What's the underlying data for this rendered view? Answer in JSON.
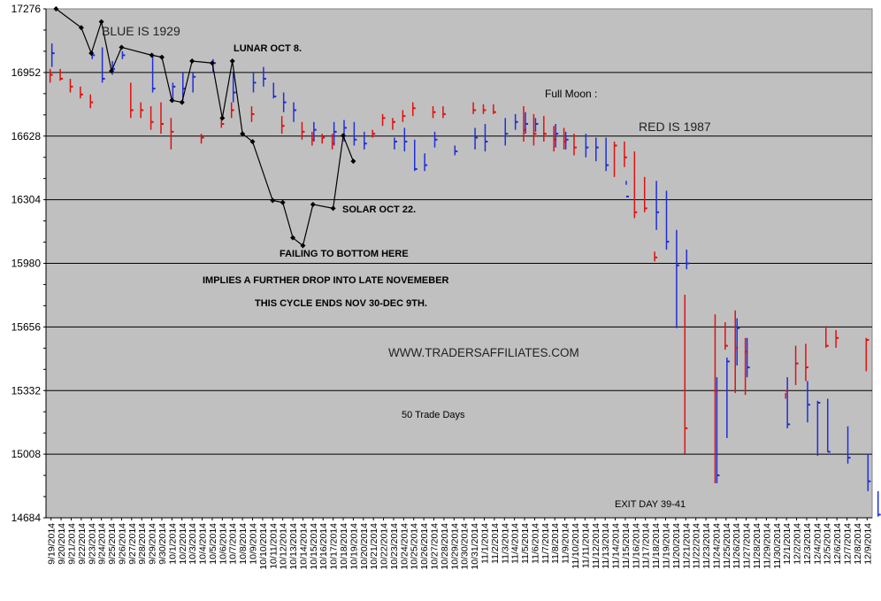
{
  "chart_data": {
    "type": "line",
    "title": "",
    "xlabel": "",
    "ylabel": "",
    "ylim": [
      14684,
      17276
    ],
    "yticks": [
      17276,
      16952,
      16628,
      16304,
      15980,
      15656,
      15332,
      15008,
      14684
    ],
    "grid": true,
    "plot_background": "#c0c0c0",
    "categories": [
      "9/19/2014",
      "9/20/2014",
      "9/21/2014",
      "9/22/2014",
      "9/23/2014",
      "9/24/2014",
      "9/25/2014",
      "9/26/2014",
      "9/27/2014",
      "9/28/2014",
      "9/29/2014",
      "9/30/2014",
      "10/1/2014",
      "10/2/2014",
      "10/3/2014",
      "10/4/2014",
      "10/5/2014",
      "10/6/2014",
      "10/7/2014",
      "10/8/2014",
      "10/9/2014",
      "10/10/2014",
      "10/11/2014",
      "10/12/2014",
      "10/13/2014",
      "10/14/2014",
      "10/15/2014",
      "10/16/2014",
      "10/17/2014",
      "10/18/2014",
      "10/19/2014",
      "10/20/2014",
      "10/21/2014",
      "10/22/2014",
      "10/23/2014",
      "10/24/2014",
      "10/25/2014",
      "10/26/2014",
      "10/27/2014",
      "10/28/2014",
      "10/29/2014",
      "10/30/2014",
      "10/31/2014",
      "11/1/2014",
      "11/2/2014",
      "11/3/2014",
      "11/4/2014",
      "11/5/2014",
      "11/6/2014",
      "11/7/2014",
      "11/8/2014",
      "11/9/2014",
      "11/10/2014",
      "11/11/2014",
      "11/12/2014",
      "11/13/2014",
      "11/14/2014",
      "11/15/2014",
      "11/16/2014",
      "11/17/2014",
      "11/18/2014",
      "11/19/2014",
      "11/20/2014",
      "11/21/2014",
      "11/22/2014",
      "11/23/2014",
      "11/24/2014",
      "11/25/2014",
      "11/26/2014",
      "11/27/2014",
      "11/28/2014",
      "11/29/2014",
      "11/30/2014",
      "12/1/2014",
      "12/2/2014",
      "12/3/2014",
      "12/4/2014",
      "12/5/2014",
      "12/6/2014",
      "12/7/2014",
      "12/8/2014",
      "12/9/2014"
    ],
    "series": [
      {
        "name": "BLUE IS 1929",
        "type": "hlc_bars",
        "color": "#1f2fd6",
        "bars": [
          [
            0,
            17100,
            16980,
            17050
          ],
          [
            4,
            17060,
            17020,
            17040
          ],
          [
            5,
            17080,
            16900,
            16920
          ],
          [
            6,
            17010,
            16940,
            16970
          ],
          [
            7,
            17060,
            17020,
            17040
          ],
          [
            10,
            17040,
            16850,
            16870
          ],
          [
            12,
            16900,
            16800,
            16880
          ],
          [
            13,
            16950,
            16810,
            16870
          ],
          [
            14,
            16950,
            16850,
            16930
          ],
          [
            16,
            17020,
            16950,
            17000
          ],
          [
            18,
            16950,
            16800,
            16850
          ],
          [
            20,
            16950,
            16850,
            16900
          ],
          [
            21,
            16980,
            16880,
            16920
          ],
          [
            22,
            16900,
            16820,
            16830
          ],
          [
            23,
            16850,
            16750,
            16800
          ],
          [
            24,
            16800,
            16700,
            16760
          ],
          [
            26,
            16700,
            16600,
            16660
          ],
          [
            28,
            16700,
            16580,
            16650
          ],
          [
            29,
            16710,
            16600,
            16670
          ],
          [
            30,
            16700,
            16580,
            16610
          ],
          [
            31,
            16650,
            16560,
            16590
          ],
          [
            34,
            16620,
            16560,
            16600
          ],
          [
            35,
            16670,
            16550,
            16600
          ],
          [
            36,
            16610,
            16450,
            16460
          ],
          [
            37,
            16540,
            16450,
            16480
          ],
          [
            38,
            16650,
            16570,
            16610
          ],
          [
            40,
            16580,
            16530,
            16550
          ],
          [
            42,
            16670,
            16560,
            16620
          ],
          [
            43,
            16690,
            16550,
            16600
          ],
          [
            45,
            16720,
            16580,
            16640
          ],
          [
            46,
            16740,
            16660,
            16700
          ],
          [
            47,
            16750,
            16640,
            16690
          ],
          [
            48,
            16720,
            16650,
            16690
          ],
          [
            50,
            16690,
            16570,
            16640
          ],
          [
            51,
            16650,
            16560,
            16610
          ],
          [
            53,
            16640,
            16520,
            16570
          ],
          [
            54,
            16620,
            16500,
            16570
          ],
          [
            55,
            16620,
            16450,
            16480
          ],
          [
            57,
            16400,
            16380,
            16320
          ],
          [
            60,
            16400,
            16150,
            16240
          ],
          [
            61,
            16350,
            16050,
            16090
          ],
          [
            62,
            16150,
            15650,
            15970
          ],
          [
            63,
            16050,
            15950,
            15980
          ],
          [
            66,
            15400,
            14860,
            14900
          ],
          [
            67,
            15500,
            15090,
            15480
          ],
          [
            68,
            15700,
            15460,
            15650
          ],
          [
            69,
            15600,
            15400,
            15450
          ],
          [
            73,
            15400,
            15140,
            15160
          ],
          [
            75,
            15380,
            15170,
            15260
          ],
          [
            76,
            15280,
            15000,
            15270
          ],
          [
            77,
            15290,
            15020,
            15020
          ],
          [
            79,
            15150,
            14960,
            14990
          ],
          [
            81,
            15010,
            14820,
            14870
          ],
          [
            82,
            14820,
            14690,
            14700
          ]
        ]
      },
      {
        "name": "RED IS 1987",
        "type": "hlc_bars",
        "color": "#e01010",
        "bars": [
          [
            0,
            16970,
            16900,
            16940
          ],
          [
            1,
            16970,
            16910,
            16920
          ],
          [
            2,
            16920,
            16850,
            16880
          ],
          [
            3,
            16880,
            16820,
            16840
          ],
          [
            4,
            16840,
            16770,
            16800
          ],
          [
            8,
            16900,
            16720,
            16760
          ],
          [
            9,
            16800,
            16720,
            16760
          ],
          [
            10,
            16780,
            16660,
            16700
          ],
          [
            11,
            16800,
            16640,
            16690
          ],
          [
            12,
            16720,
            16560,
            16650
          ],
          [
            15,
            16640,
            16590,
            16620
          ],
          [
            17,
            16720,
            16670,
            16690
          ],
          [
            18,
            16800,
            16720,
            16760
          ],
          [
            20,
            16780,
            16700,
            16740
          ],
          [
            23,
            16730,
            16640,
            16680
          ],
          [
            25,
            16700,
            16610,
            16650
          ],
          [
            26,
            16650,
            16580,
            16610
          ],
          [
            27,
            16640,
            16590,
            16620
          ],
          [
            28,
            16640,
            16560,
            16590
          ],
          [
            32,
            16660,
            16620,
            16640
          ],
          [
            33,
            16740,
            16680,
            16720
          ],
          [
            34,
            16720,
            16660,
            16700
          ],
          [
            35,
            16760,
            16700,
            16730
          ],
          [
            36,
            16800,
            16730,
            16770
          ],
          [
            38,
            16780,
            16720,
            16750
          ],
          [
            39,
            16780,
            16720,
            16740
          ],
          [
            42,
            16800,
            16740,
            16760
          ],
          [
            43,
            16790,
            16740,
            16760
          ],
          [
            44,
            16790,
            16740,
            16750
          ],
          [
            47,
            16780,
            16600,
            16660
          ],
          [
            48,
            16740,
            16580,
            16640
          ],
          [
            49,
            16730,
            16600,
            16640
          ],
          [
            50,
            16680,
            16550,
            16610
          ],
          [
            51,
            16670,
            16560,
            16600
          ],
          [
            52,
            16640,
            16530,
            16570
          ],
          [
            56,
            16600,
            16420,
            16580
          ],
          [
            57,
            16600,
            16470,
            16520
          ],
          [
            58,
            16550,
            16210,
            16240
          ],
          [
            59,
            16420,
            16240,
            16260
          ],
          [
            60,
            16040,
            15990,
            16010
          ],
          [
            63,
            15820,
            15010,
            15140
          ],
          [
            66,
            15720,
            14860,
            15330
          ],
          [
            67,
            15680,
            15540,
            15560
          ],
          [
            68,
            15740,
            15320,
            15550
          ],
          [
            69,
            15600,
            15310,
            15530
          ],
          [
            73,
            15320,
            15290,
            15330
          ],
          [
            74,
            15560,
            15360,
            15470
          ],
          [
            75,
            15570,
            15380,
            15450
          ],
          [
            77,
            15660,
            15550,
            15560
          ],
          [
            78,
            15640,
            15550,
            15600
          ],
          [
            81,
            15600,
            15430,
            15590
          ]
        ]
      },
      {
        "name": "",
        "type": "line",
        "color": "#000000",
        "marker": "diamond",
        "points": [
          [
            0.5,
            17276
          ],
          [
            3,
            17180
          ],
          [
            4,
            17050
          ],
          [
            5,
            17210
          ],
          [
            6,
            16960
          ],
          [
            7,
            17080
          ],
          [
            10,
            17040
          ],
          [
            11,
            17030
          ],
          [
            12,
            16810
          ],
          [
            13,
            16800
          ],
          [
            14,
            17010
          ],
          [
            16,
            17000
          ],
          [
            17,
            16720
          ],
          [
            18,
            17010
          ],
          [
            19,
            16640
          ],
          [
            20,
            16600
          ],
          [
            22,
            16300
          ],
          [
            23,
            16290
          ],
          [
            24,
            16110
          ],
          [
            25,
            16070
          ],
          [
            26,
            16280
          ],
          [
            28,
            16260
          ],
          [
            29,
            16630
          ],
          [
            30,
            16500
          ]
        ]
      }
    ],
    "annotations": [
      {
        "id": "blue",
        "text": "BLUE IS 1929"
      },
      {
        "id": "lunar",
        "text": "LUNAR OCT 8."
      },
      {
        "id": "fullmoon",
        "text": "Full Moon :"
      },
      {
        "id": "red",
        "text": "RED IS 1987"
      },
      {
        "id": "solar",
        "text": "SOLAR OCT 22."
      },
      {
        "id": "fail",
        "text": "FAILING TO BOTTOM HERE"
      },
      {
        "id": "implies",
        "text": "IMPLIES A FURTHER DROP INTO LATE NOVEMEBER"
      },
      {
        "id": "cycle",
        "text": "THIS CYCLE ENDS NOV 30-DEC 9TH."
      },
      {
        "id": "site",
        "text": "WWW.TRADERSAFFILIATES.COM"
      },
      {
        "id": "days",
        "text": "50 Trade Days"
      },
      {
        "id": "exit",
        "text": "EXIT DAY 39-41"
      }
    ]
  }
}
